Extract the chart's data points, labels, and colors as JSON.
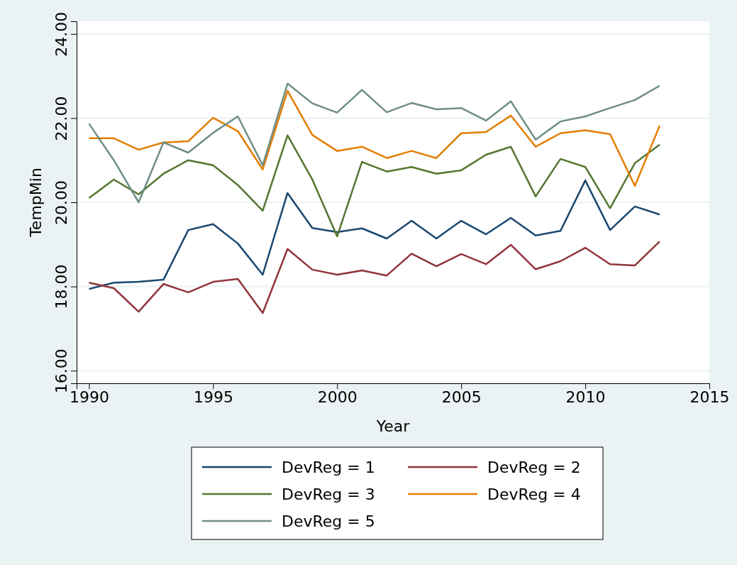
{
  "chart_data": {
    "type": "line",
    "xlabel": "Year",
    "ylabel": "TempMin",
    "x": [
      1990,
      1991,
      1992,
      1993,
      1994,
      1995,
      1996,
      1997,
      1998,
      1999,
      2000,
      2001,
      2002,
      2003,
      2004,
      2005,
      2006,
      2007,
      2008,
      2009,
      2010,
      2011,
      2012,
      2013
    ],
    "series": [
      {
        "name": "DevReg = 1",
        "color": "#1a476f",
        "values": [
          17.94,
          18.09,
          18.11,
          18.16,
          19.34,
          19.48,
          19.02,
          18.28,
          20.22,
          19.39,
          19.29,
          19.38,
          19.14,
          19.56,
          19.14,
          19.56,
          19.24,
          19.63,
          19.21,
          19.32,
          20.52,
          19.34,
          19.9,
          19.71
        ]
      },
      {
        "name": "DevReg = 2",
        "color": "#90353b",
        "values": [
          18.09,
          17.96,
          17.4,
          18.06,
          17.86,
          18.11,
          18.18,
          17.37,
          18.89,
          18.4,
          18.28,
          18.38,
          18.26,
          18.78,
          18.48,
          18.77,
          18.53,
          18.99,
          18.41,
          18.6,
          18.92,
          18.53,
          18.5,
          19.07
        ]
      },
      {
        "name": "DevReg = 3",
        "color": "#55752f",
        "values": [
          20.1,
          20.54,
          20.19,
          20.68,
          21.0,
          20.88,
          20.41,
          19.8,
          21.59,
          20.54,
          19.19,
          20.96,
          20.73,
          20.84,
          20.68,
          20.76,
          21.13,
          21.32,
          20.14,
          21.03,
          20.84,
          19.86,
          20.93,
          21.37
        ]
      },
      {
        "name": "DevReg = 4",
        "color": "#e37e00",
        "values": [
          21.52,
          21.52,
          21.25,
          21.42,
          21.45,
          22.01,
          21.69,
          20.78,
          22.65,
          21.6,
          21.22,
          21.32,
          21.05,
          21.22,
          21.05,
          21.64,
          21.67,
          22.06,
          21.32,
          21.64,
          21.71,
          21.62,
          20.39,
          21.82
        ]
      },
      {
        "name": "DevReg = 5",
        "color": "#6e8e84",
        "values": [
          21.87,
          21.0,
          20.0,
          21.42,
          21.18,
          21.65,
          22.04,
          20.88,
          22.82,
          22.35,
          22.13,
          22.67,
          22.14,
          22.36,
          22.21,
          22.24,
          21.94,
          22.4,
          21.49,
          21.92,
          22.04,
          22.24,
          22.43,
          22.77
        ]
      }
    ],
    "xlim": [
      1989.5,
      2015
    ],
    "xticks": [
      1990,
      1995,
      2000,
      2005,
      2010,
      2015
    ],
    "ylim": [
      15.7,
      24.3
    ],
    "yticks": [
      {
        "value": 16,
        "label": "16.00"
      },
      {
        "value": 18,
        "label": "18.00"
      },
      {
        "value": 20,
        "label": "20.00"
      },
      {
        "value": 22,
        "label": "22.00"
      },
      {
        "value": 24,
        "label": "24.00"
      }
    ],
    "grid": "y",
    "legend": "bottom",
    "line_style": "solid",
    "marker": "none"
  }
}
